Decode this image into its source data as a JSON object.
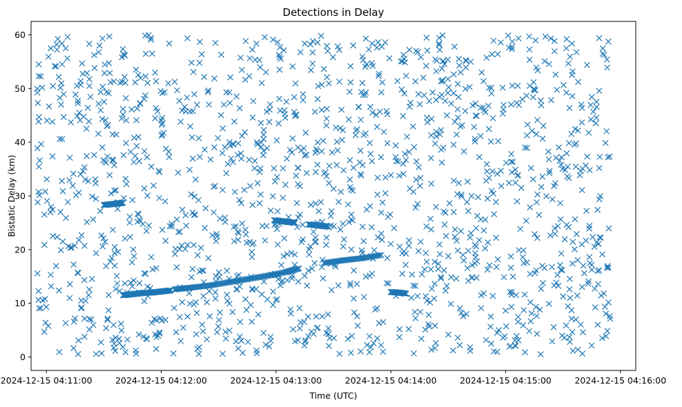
{
  "chart_data": {
    "type": "scatter",
    "title": "Detections in Delay",
    "xlabel": "Time (UTC)",
    "ylabel": "Bistatic Delay (km)",
    "x_unit": "time",
    "xlim": [
      "2024-12-15 04:10:52",
      "2024-12-15 04:16:08"
    ],
    "ylim": [
      -2.5,
      62.5
    ],
    "x_ticks": [
      "2024-12-15 04:11:00",
      "2024-12-15 04:12:00",
      "2024-12-15 04:13:00",
      "2024-12-15 04:14:00",
      "2024-12-15 04:15:00",
      "2024-12-15 04:16:00"
    ],
    "y_ticks": [
      "0",
      "10",
      "20",
      "30",
      "40",
      "50",
      "60"
    ],
    "y_tick_values": [
      0,
      10,
      20,
      30,
      40,
      50,
      60
    ],
    "grid": false,
    "legend": "none",
    "marker": "x",
    "color": "#1f77b4",
    "background_noise": {
      "time_range": [
        "2024-12-15 04:10:55",
        "2024-12-15 04:15:55"
      ],
      "delay_range": [
        0.5,
        60
      ],
      "approx_points": 1500
    },
    "tracks": [
      {
        "x": [
          "2024-12-15 04:11:40",
          "2024-12-15 04:11:45",
          "2024-12-15 04:11:50",
          "2024-12-15 04:11:55",
          "2024-12-15 04:12:00",
          "2024-12-15 04:12:05"
        ],
        "y": [
          11.5,
          11.7,
          11.9,
          12.0,
          12.2,
          12.4
        ]
      },
      {
        "x": [
          "2024-12-15 04:12:07",
          "2024-12-15 04:12:15",
          "2024-12-15 04:12:25",
          "2024-12-15 04:12:35",
          "2024-12-15 04:12:45",
          "2024-12-15 04:12:55",
          "2024-12-15 04:13:05",
          "2024-12-15 04:13:12"
        ],
        "y": [
          12.6,
          12.9,
          13.3,
          13.9,
          14.5,
          15.1,
          15.8,
          16.5
        ]
      },
      {
        "x": [
          "2024-12-15 04:13:25",
          "2024-12-15 04:13:35",
          "2024-12-15 04:13:45",
          "2024-12-15 04:13:55"
        ],
        "y": [
          17.5,
          18.0,
          18.4,
          19.0
        ]
      },
      {
        "x": [
          "2024-12-15 04:12:59",
          "2024-12-15 04:13:05",
          "2024-12-15 04:13:10"
        ],
        "y": [
          25.5,
          25.2,
          25.0
        ]
      },
      {
        "x": [
          "2024-12-15 04:13:17",
          "2024-12-15 04:13:22",
          "2024-12-15 04:13:27"
        ],
        "y": [
          24.7,
          24.5,
          24.3
        ]
      },
      {
        "x": [
          "2024-12-15 04:14:00",
          "2024-12-15 04:14:04",
          "2024-12-15 04:14:08"
        ],
        "y": [
          12.1,
          12.0,
          11.8
        ]
      },
      {
        "x": [
          "2024-12-15 04:11:30",
          "2024-12-15 04:11:35",
          "2024-12-15 04:11:40"
        ],
        "y": [
          28.3,
          28.5,
          28.7
        ]
      }
    ]
  }
}
